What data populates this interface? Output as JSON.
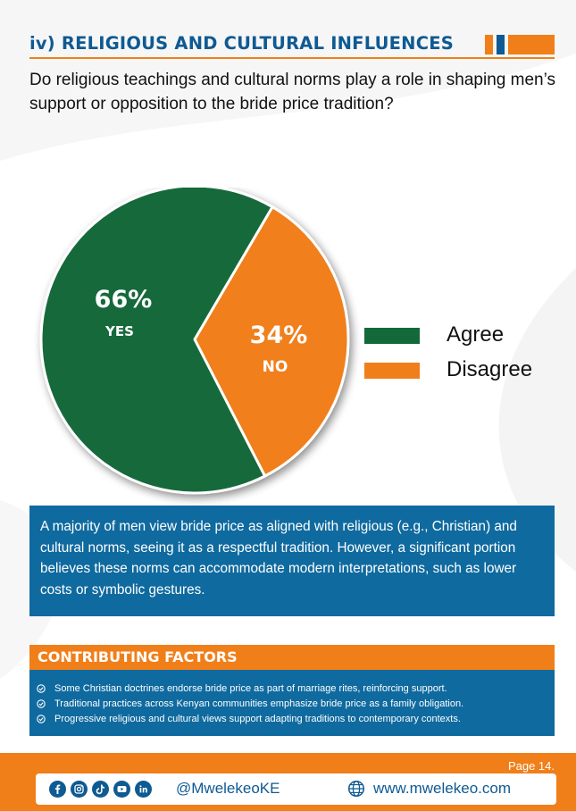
{
  "section_title": "iv) RELIGIOUS AND CULTURAL INFLUENCES",
  "question": "Do religious teachings and cultural norms play a role in shaping men’s support or opposition to the bride price tradition?",
  "chart_data": {
    "type": "pie",
    "slices": [
      {
        "label": "Agree",
        "value": 66,
        "value_label": "66%",
        "slice_label": "YES",
        "color": "#13693a"
      },
      {
        "label": "Disagree",
        "value": 34,
        "value_label": "34%",
        "slice_label": "NO",
        "color": "#f07f1a"
      }
    ],
    "legend_position": "right"
  },
  "summary": "A majority of men view bride price as aligned with religious (e.g., Christian) and cultural norms, seeing it as a respectful tradition. However, a significant portion believes these norms can accommodate modern interpretations, such as lower costs or symbolic gestures.",
  "contributing_factors": {
    "title": "CONTRIBUTING FACTORS",
    "items": [
      "Some Christian doctrines endorse bride price as part of marriage rites, reinforcing support.",
      "Traditional practices across Kenyan communities emphasize bride price as a family obligation.",
      "Progressive religious and cultural views support adapting traditions to contemporary contexts."
    ]
  },
  "footer": {
    "page_label": "Page 14.",
    "social_icons": [
      "facebook-icon",
      "instagram-icon",
      "tiktok-icon",
      "youtube-icon",
      "linkedin-icon"
    ],
    "handle": "@MwelekeoKE",
    "website": "www.mwelekeo.com"
  },
  "colors": {
    "blue": "#0f6a9f",
    "dark_blue": "#0e5a93",
    "orange": "#f07f1a",
    "green": "#13693a"
  }
}
